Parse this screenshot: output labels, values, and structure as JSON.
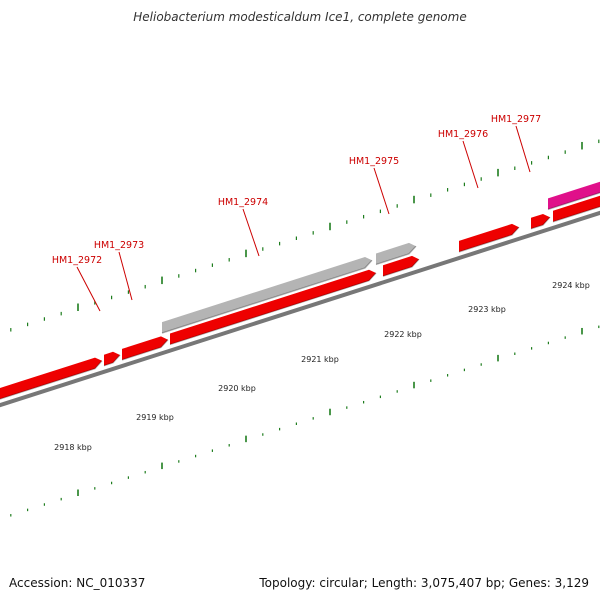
{
  "title": "Heliobacterium modesticaldum Ice1, complete genome",
  "footer": {
    "accession": "Accession: NC_010337",
    "topology": "Topology: circular; Length: 3,075,407 bp; Genes: 3,129"
  },
  "colors": {
    "cds": "#ee0000",
    "gene": "#b4b4b4",
    "rna": "#e0108a",
    "tick": "#1e7d1e",
    "backbone": "#777777",
    "gene_label": "#cc0000"
  },
  "gene_labels": [
    "HM1_2972",
    "HM1_2973",
    "HM1_2974",
    "HM1_2975",
    "HM1_2976",
    "HM1_2977"
  ],
  "kbp_labels": [
    "2918 kbp",
    "2919 kbp",
    "2920 kbp",
    "2921 kbp",
    "2922 kbp",
    "2923 kbp",
    "2924 kbp"
  ]
}
